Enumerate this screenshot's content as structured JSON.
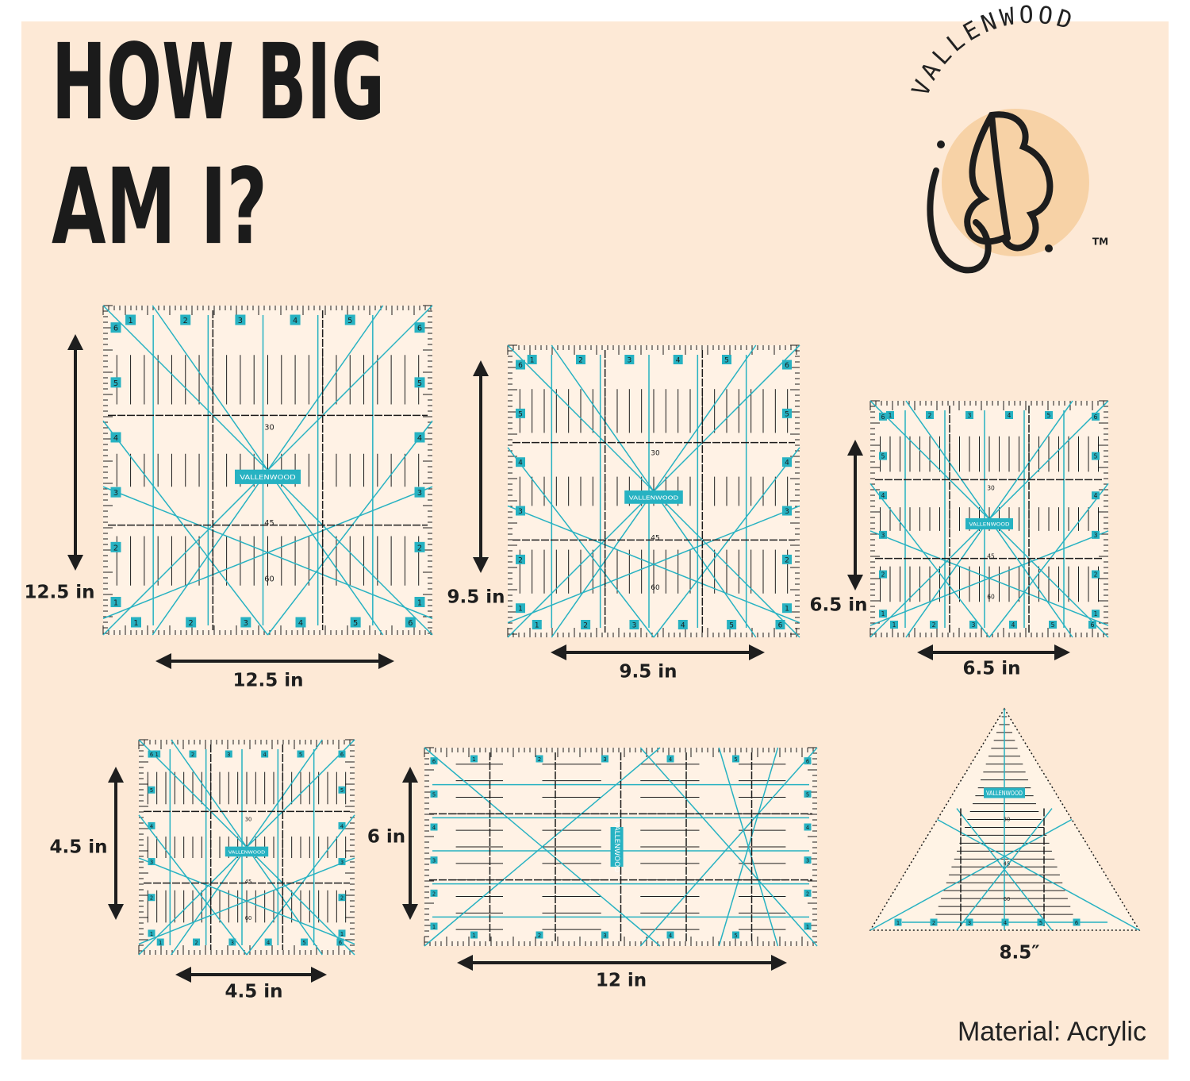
{
  "header": {
    "title_lines": [
      "HOW BIG",
      "AM I?"
    ]
  },
  "brand": {
    "name": "VALLENWOOD",
    "trademark": "TM"
  },
  "ruler_marks": {
    "numbers": [
      "1",
      "2",
      "3",
      "4",
      "5",
      "6"
    ],
    "angles": [
      "30",
      "45",
      "60"
    ],
    "logo": "VALLENWOOD"
  },
  "rulers": [
    {
      "width_label": "12.5 in",
      "height_label": "12.5 in"
    },
    {
      "width_label": "9.5 in",
      "height_label": "9.5 in"
    },
    {
      "width_label": "6.5 in",
      "height_label": "6.5 in"
    },
    {
      "width_label": "4.5 in",
      "height_label": "4.5 in"
    },
    {
      "width_label": "12 in",
      "height_label": "6 in"
    },
    {
      "label": "8.5″"
    }
  ],
  "footer": {
    "material": "Material: Acrylic"
  }
}
